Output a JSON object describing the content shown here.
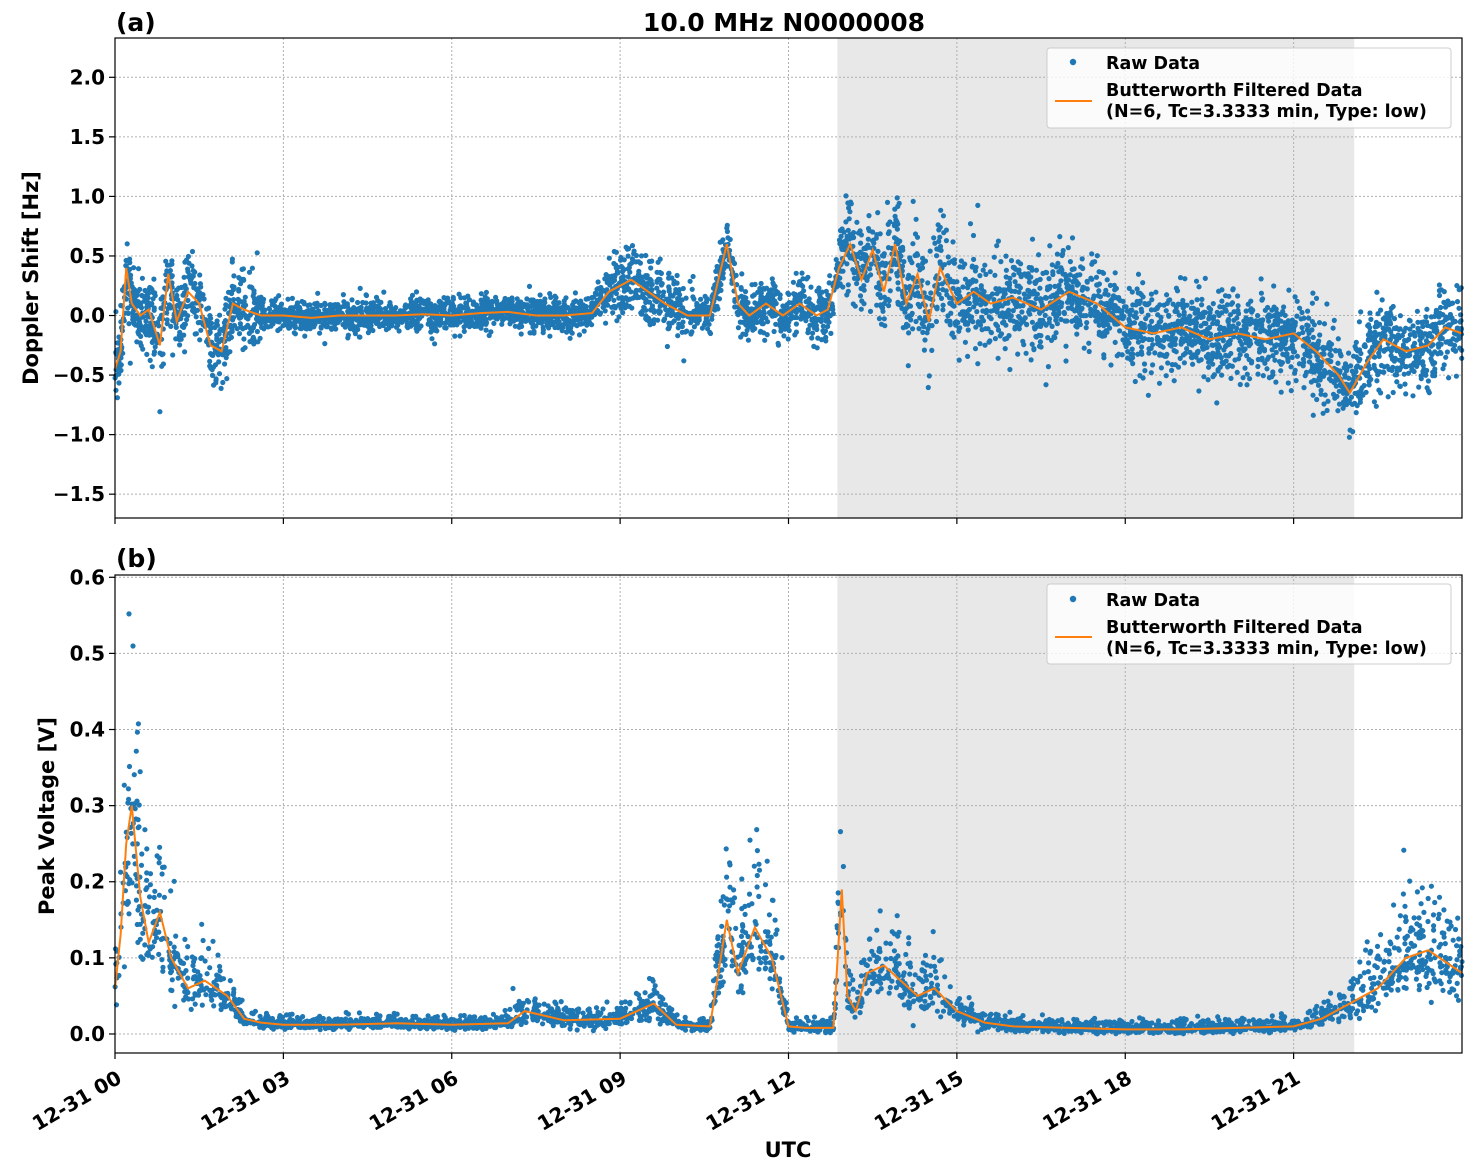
{
  "figure": {
    "title": "10.0 MHz N0000008",
    "xlabel": "UTC",
    "x_ticks": [
      "12-31 00",
      "12-31 03",
      "12-31 06",
      "12-31 09",
      "12-31 12",
      "12-31 15",
      "12-31 18",
      "12-31 21"
    ],
    "x_tick_hours": [
      0,
      3,
      6,
      9,
      12,
      15,
      18,
      21
    ],
    "x_range_hours": [
      0,
      24
    ],
    "shaded_region_hours": [
      12.87,
      22.08
    ],
    "colors": {
      "raw": "#1f77b4",
      "filtered": "#ff7f0e",
      "shade": "#e8e8e8",
      "grid": "#b0b0b0"
    },
    "legend": {
      "raw_label": "Raw Data",
      "filtered_label_line1": "Butterworth Filtered Data",
      "filtered_label_line2": "(N=6, Tc=3.3333 min, Type: low)"
    }
  },
  "chart_data": [
    {
      "type": "scatter",
      "panel_label": "(a)",
      "ylabel": "Doppler Shift [Hz]",
      "ylim": [
        -1.7,
        2.33
      ],
      "y_ticks": [
        -1.5,
        -1.0,
        -0.5,
        0.0,
        0.5,
        1.0,
        1.5,
        2.0
      ],
      "y_tick_labels": [
        "−1.5",
        "−1.0",
        "−0.5",
        "0.0",
        "0.5",
        "1.0",
        "1.5",
        "2.0"
      ],
      "grid": true,
      "legend_position": "top-right",
      "series": [
        {
          "name": "Butterworth Filtered Data",
          "kind": "line",
          "x_hours": [
            0,
            0.1,
            0.2,
            0.3,
            0.45,
            0.6,
            0.8,
            0.95,
            1.1,
            1.3,
            1.5,
            1.7,
            1.9,
            2.1,
            2.3,
            2.6,
            3,
            3.5,
            4,
            4.5,
            5,
            5.5,
            6,
            6.5,
            7,
            7.5,
            8,
            8.5,
            8.8,
            9.2,
            9.5,
            9.8,
            10.2,
            10.6,
            10.9,
            11.1,
            11.3,
            11.6,
            11.9,
            12.2,
            12.5,
            12.7,
            12.9,
            13.1,
            13.3,
            13.5,
            13.7,
            13.9,
            14.1,
            14.3,
            14.5,
            14.7,
            15,
            15.3,
            15.6,
            16,
            16.5,
            17,
            17.5,
            18,
            18.5,
            19,
            19.5,
            20,
            20.5,
            21,
            21.4,
            21.8,
            22,
            22.3,
            22.6,
            23,
            23.4,
            23.7,
            24
          ],
          "y": [
            -0.45,
            -0.3,
            0.4,
            0.1,
            0.0,
            0.05,
            -0.25,
            0.35,
            -0.05,
            0.2,
            0.1,
            -0.25,
            -0.3,
            0.1,
            0.05,
            0.0,
            0.0,
            -0.02,
            0.0,
            0.0,
            0.0,
            0.01,
            0.0,
            0.02,
            0.03,
            0.0,
            0.0,
            0.02,
            0.2,
            0.3,
            0.2,
            0.1,
            0.0,
            0.0,
            0.6,
            0.1,
            0.0,
            0.1,
            0.0,
            0.1,
            0.0,
            0.05,
            0.4,
            0.6,
            0.3,
            0.55,
            0.2,
            0.6,
            0.1,
            0.35,
            -0.05,
            0.4,
            0.1,
            0.2,
            0.1,
            0.15,
            0.05,
            0.2,
            0.1,
            -0.1,
            -0.15,
            -0.1,
            -0.2,
            -0.15,
            -0.2,
            -0.15,
            -0.3,
            -0.5,
            -0.65,
            -0.4,
            -0.2,
            -0.3,
            -0.25,
            -0.1,
            -0.15
          ]
        },
        {
          "name": "Raw Data",
          "kind": "points",
          "note_spread_hz": [
            [
              0,
              0.3
            ],
            [
              2.5,
              0.12
            ],
            [
              9.0,
              0.25
            ],
            [
              11,
              0.15
            ],
            [
              13.5,
              0.35
            ],
            [
              16,
              0.4
            ],
            [
              19,
              0.35
            ],
            [
              22,
              0.35
            ],
            [
              24,
              0.3
            ]
          ]
        }
      ]
    },
    {
      "type": "scatter",
      "panel_label": "(b)",
      "ylabel": "Peak Voltage [V]",
      "ylim": [
        -0.025,
        0.603
      ],
      "y_ticks": [
        0.0,
        0.1,
        0.2,
        0.3,
        0.4,
        0.5,
        0.6
      ],
      "y_tick_labels": [
        "0.0",
        "0.1",
        "0.2",
        "0.3",
        "0.4",
        "0.5",
        "0.6"
      ],
      "grid": true,
      "legend_position": "top-right",
      "series": [
        {
          "name": "Butterworth Filtered Data",
          "kind": "line",
          "x_hours": [
            0,
            0.1,
            0.2,
            0.3,
            0.45,
            0.6,
            0.8,
            1.0,
            1.3,
            1.6,
            2.0,
            2.3,
            2.6,
            3.0,
            4,
            5,
            6,
            7,
            7.3,
            8,
            9,
            9.6,
            10,
            10.6,
            10.9,
            11.1,
            11.4,
            11.7,
            12.0,
            12.3,
            12.8,
            12.95,
            13.05,
            13.2,
            13.4,
            13.7,
            14.0,
            14.3,
            14.6,
            15.0,
            15.5,
            16,
            17,
            18,
            19,
            20,
            21,
            21.5,
            22,
            22.5,
            23,
            23.4,
            23.8,
            24
          ],
          "y": [
            0.06,
            0.13,
            0.25,
            0.3,
            0.18,
            0.12,
            0.16,
            0.1,
            0.06,
            0.07,
            0.05,
            0.02,
            0.015,
            0.012,
            0.012,
            0.014,
            0.012,
            0.014,
            0.03,
            0.018,
            0.02,
            0.04,
            0.012,
            0.01,
            0.15,
            0.08,
            0.14,
            0.1,
            0.01,
            0.008,
            0.008,
            0.19,
            0.05,
            0.03,
            0.08,
            0.09,
            0.07,
            0.05,
            0.06,
            0.03,
            0.015,
            0.01,
            0.008,
            0.006,
            0.006,
            0.008,
            0.01,
            0.02,
            0.04,
            0.06,
            0.1,
            0.11,
            0.09,
            0.08
          ]
        },
        {
          "name": "Raw Data",
          "kind": "points"
        }
      ]
    }
  ]
}
